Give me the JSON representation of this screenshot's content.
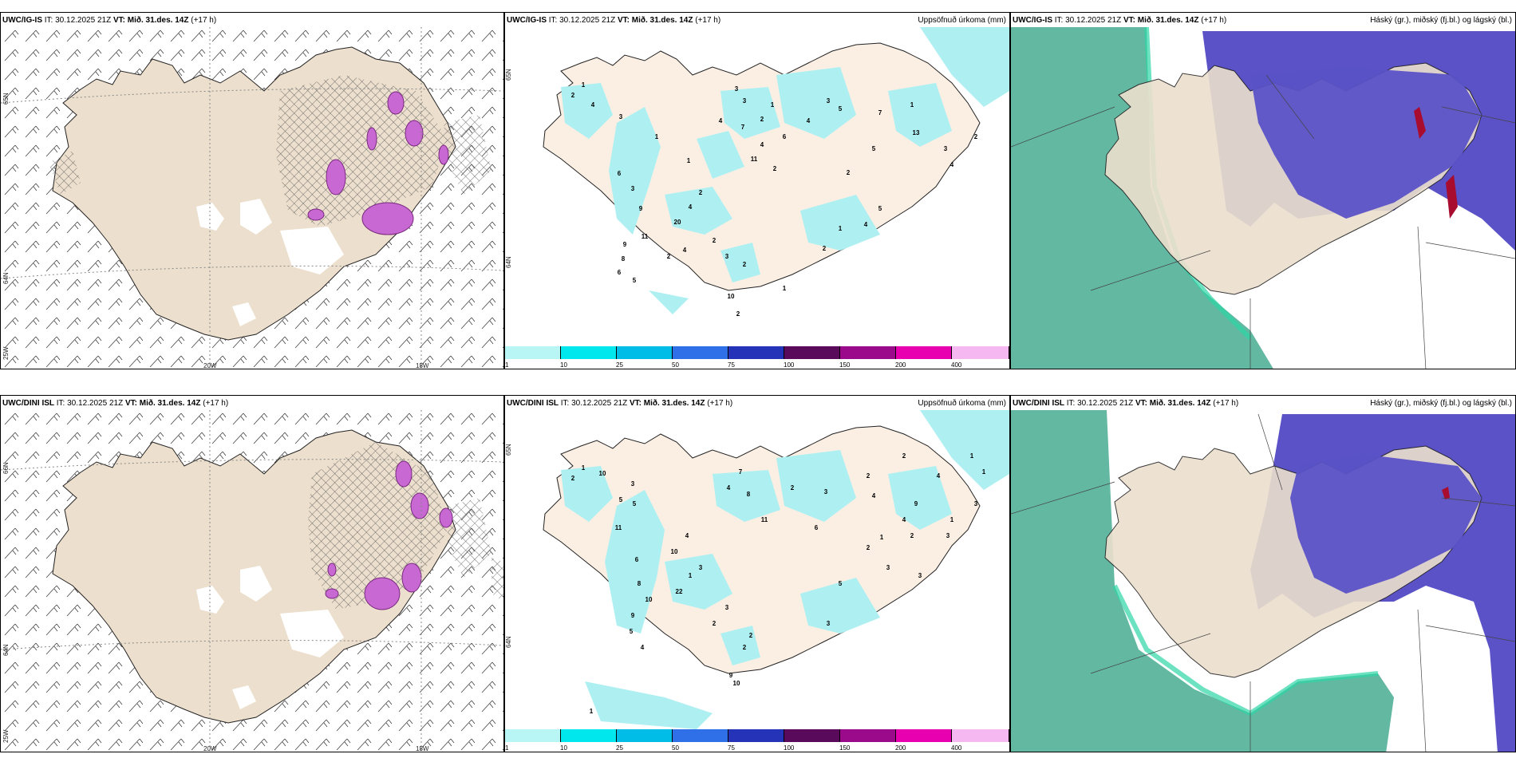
{
  "rows": [
    {
      "model": "UWC/IG-IS",
      "init_label": "IT: 30.12.2025 21Z",
      "valid_label": "VT: Mið. 31.des. 14Z",
      "lead": "(+17 h)",
      "left_axis": {
        "lat_top": "65N",
        "lat_mid": "64N",
        "lat_bot": "25W",
        "lon_left": "20W",
        "lon_right": "15W"
      },
      "mid_axis": {
        "lat_top": "65N",
        "lat_mid": "64N"
      }
    },
    {
      "model": "UWC/DINI ISL",
      "init_label": "IT: 30.12.2025 21Z",
      "valid_label": "VT: Mið. 31.des. 14Z",
      "lead": "(+17 h)",
      "left_axis": {
        "lat_top": "66N",
        "lat_mid": "64N",
        "lat_bot": "25W",
        "lon_left": "20W",
        "lon_right": "15W"
      },
      "mid_axis": {
        "lat_top": "65N",
        "lat_mid": "64N"
      }
    }
  ],
  "precip_title": "Uppsöfnuð úrkoma (mm)",
  "cloud_title": "Háský (gr.), miðský (fj.bl.) og lágský (bl.)",
  "colorbar": {
    "labels": [
      "1",
      "10",
      "25",
      "50",
      "75",
      "100",
      "150",
      "200",
      "400"
    ],
    "colors": [
      "#b8f5f5",
      "#00e8ee",
      "#00bde8",
      "#2f6fe8",
      "#2433b8",
      "#5a0a5a",
      "#9a0a8a",
      "#e800b0",
      "#f5b8f0"
    ]
  },
  "colors": {
    "land": "#ecdfcd",
    "land_light": "#fbefe4",
    "precip": "#aef0f2",
    "sea_cloud": "#63b8a2",
    "high_cloud": "#5a52c6",
    "mixed_phase": "#c868d2",
    "hatch": "#555555"
  },
  "precip_values_row1": [
    "1",
    "2",
    "4",
    "3",
    "1",
    "3",
    "3",
    "1",
    "4",
    "2",
    "6",
    "7",
    "4",
    "11",
    "2",
    "3",
    "5",
    "7",
    "1",
    "13",
    "5",
    "2",
    "4",
    "6",
    "9",
    "20",
    "3",
    "1",
    "2",
    "4",
    "11",
    "9",
    "8",
    "6",
    "5",
    "2",
    "4",
    "2",
    "3",
    "2",
    "1",
    "4",
    "5",
    "10",
    "2",
    "1",
    "2",
    "3",
    "4",
    "2"
  ],
  "precip_values_row2": [
    "1",
    "2",
    "10",
    "5",
    "3",
    "11",
    "5",
    "7",
    "4",
    "8",
    "11",
    "2",
    "3",
    "6",
    "2",
    "4",
    "9",
    "10",
    "4",
    "3",
    "1",
    "22",
    "6",
    "8",
    "10",
    "9",
    "5",
    "4",
    "2",
    "3",
    "2",
    "9",
    "10",
    "2",
    "5",
    "3",
    "3",
    "3",
    "2",
    "1",
    "4",
    "1",
    "3",
    "2",
    "1",
    "1",
    "4",
    "2",
    "3",
    "1"
  ]
}
